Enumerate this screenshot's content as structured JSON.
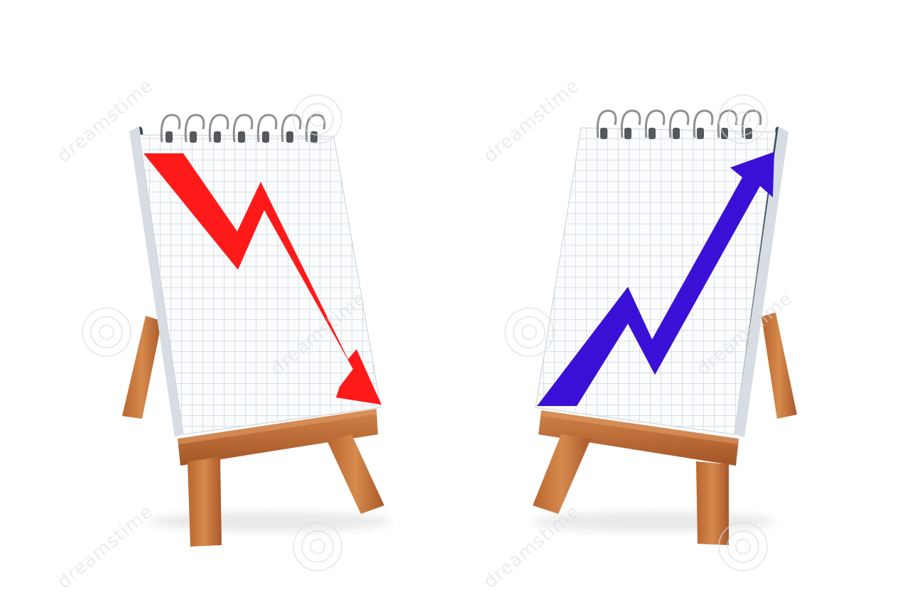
{
  "scene": {
    "background": "#ffffff",
    "description_hidden": true,
    "notepads": [
      {
        "id": "left",
        "arrow_color": "#ff1a1a",
        "trend": "down"
      },
      {
        "id": "right",
        "arrow_color": "#3b10d6",
        "trend": "up"
      }
    ],
    "colors": {
      "paper": "#fbfcfd",
      "grid": "#b9c3cf",
      "wood": "#c8743a",
      "wood_dark": "#9b5228",
      "spiral": "#8d8f93"
    }
  },
  "watermark": {
    "text": "dreamstime",
    "icon": "spiral-logo-icon"
  }
}
